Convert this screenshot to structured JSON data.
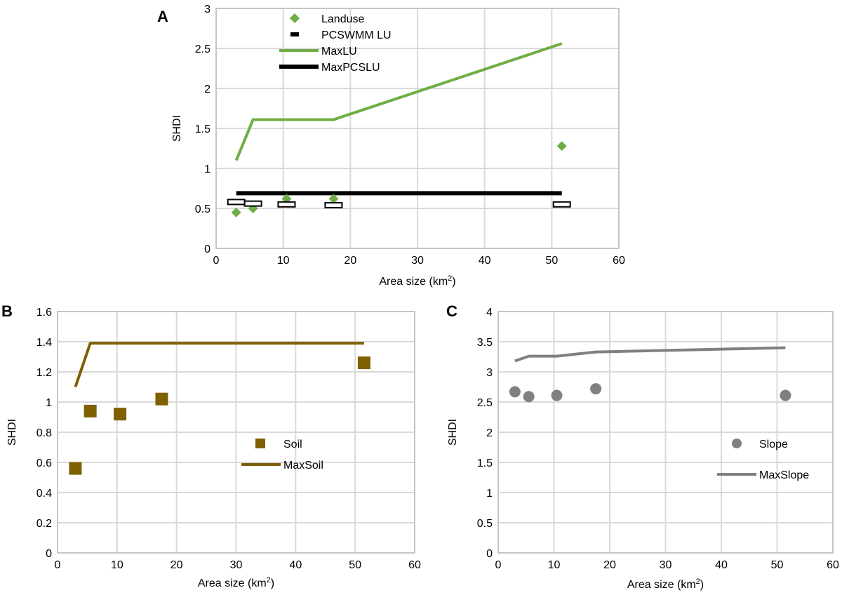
{
  "chart_data": [
    {
      "type": "scatter",
      "panel_label": "A",
      "title": "",
      "xlabel": "Area size (km",
      "xlabel_sup": "2",
      "xlabel_close": ")",
      "ylabel": "SHDI",
      "xlim": [
        0,
        60
      ],
      "ylim": [
        0,
        3
      ],
      "xticks": [
        "0",
        "10",
        "20",
        "30",
        "40",
        "50",
        "60"
      ],
      "yticks": [
        "0",
        "0.5",
        "1",
        "1.5",
        "2",
        "2.5",
        "3"
      ],
      "grid": true,
      "legend_position": "top-left",
      "series": [
        {
          "name": "Landuse",
          "kind": "diamond",
          "color": "#70ad47",
          "x": [
            3,
            5.5,
            10.5,
            17.5,
            51.5
          ],
          "y": [
            0.45,
            0.5,
            0.62,
            0.62,
            1.28
          ]
        },
        {
          "name": "PCSWMM LU",
          "kind": "dash",
          "color": "#000000",
          "x": [
            3,
            5.5,
            10.5,
            17.5,
            51.5
          ],
          "y": [
            0.58,
            0.56,
            0.55,
            0.54,
            0.55
          ]
        },
        {
          "name": "MaxLU",
          "kind": "line",
          "color": "#70ad47",
          "x": [
            3,
            5.5,
            17.5,
            51.5
          ],
          "y": [
            1.1,
            1.61,
            1.61,
            2.56
          ]
        },
        {
          "name": "MaxPCSLU",
          "kind": "line",
          "color": "#000000",
          "x": [
            3,
            51.5
          ],
          "y": [
            0.69,
            0.69
          ]
        }
      ]
    },
    {
      "type": "scatter",
      "panel_label": "B",
      "title": "",
      "xlabel": "Area size (km",
      "xlabel_sup": "2",
      "xlabel_close": ")",
      "ylabel": "SHDI",
      "xlim": [
        0,
        60
      ],
      "ylim": [
        0,
        1.6
      ],
      "xticks": [
        "0",
        "10",
        "20",
        "30",
        "40",
        "50",
        "60"
      ],
      "yticks": [
        "0",
        "0.2",
        "0.4",
        "0.6",
        "0.8",
        "1",
        "1.2",
        "1.4",
        "1.6"
      ],
      "grid": true,
      "legend_position": "center-right",
      "series": [
        {
          "name": "Soil",
          "kind": "square",
          "color": "#7f6000",
          "x": [
            3,
            5.5,
            10.5,
            17.5,
            51.5
          ],
          "y": [
            0.56,
            0.94,
            0.92,
            1.02,
            1.26
          ]
        },
        {
          "name": "MaxSoil",
          "kind": "line",
          "color": "#7f6000",
          "x": [
            3,
            5.5,
            51.5
          ],
          "y": [
            1.1,
            1.39,
            1.39
          ]
        }
      ]
    },
    {
      "type": "scatter",
      "panel_label": "C",
      "title": "",
      "xlabel": "Area size (km",
      "xlabel_sup": "2",
      "xlabel_close": ")",
      "ylabel": "SHDI",
      "xlim": [
        0,
        60
      ],
      "ylim": [
        0,
        4
      ],
      "xticks": [
        "0",
        "10",
        "20",
        "30",
        "40",
        "50",
        "60"
      ],
      "yticks": [
        "0",
        "0.5",
        "1",
        "1.5",
        "2",
        "2.5",
        "3",
        "3.5",
        "4"
      ],
      "grid": true,
      "legend_position": "bottom-right",
      "series": [
        {
          "name": "Slope",
          "kind": "circle",
          "color": "#808080",
          "x": [
            3,
            5.5,
            10.5,
            17.5,
            51.5
          ],
          "y": [
            2.67,
            2.59,
            2.61,
            2.72,
            2.61
          ]
        },
        {
          "name": "MaxSlope",
          "kind": "line",
          "color": "#808080",
          "x": [
            3,
            5.5,
            10.5,
            17.5,
            51.5
          ],
          "y": [
            3.18,
            3.26,
            3.26,
            3.33,
            3.4
          ]
        }
      ]
    }
  ]
}
